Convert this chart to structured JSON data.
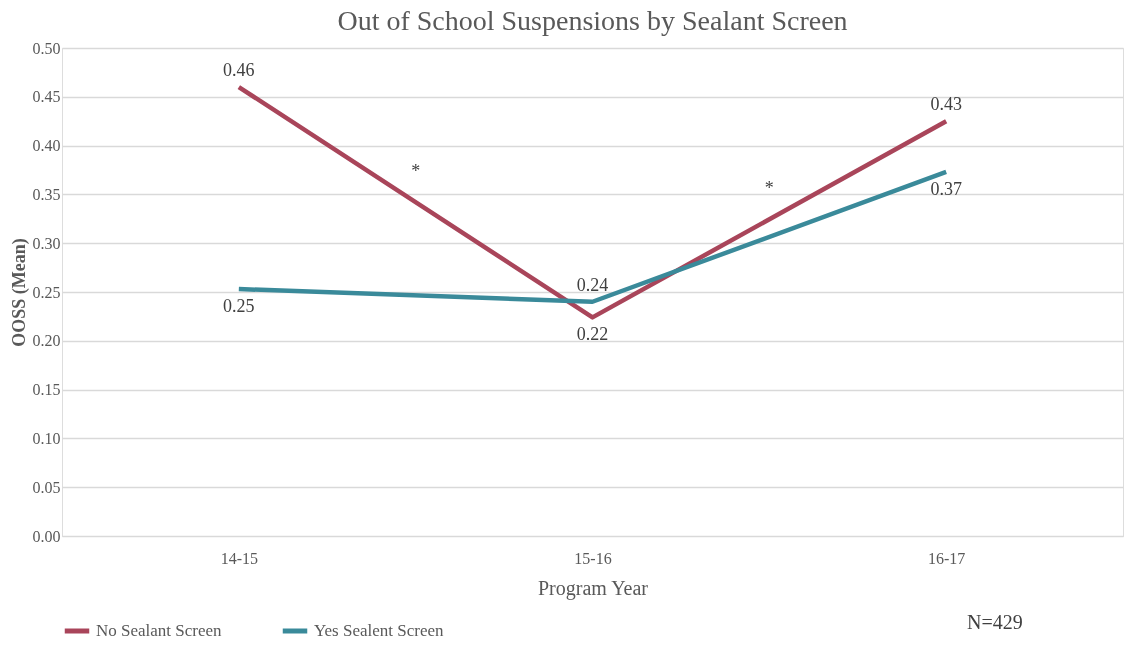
{
  "chart_data": {
    "type": "line",
    "title": "Out of School Suspensions by Sealant Screen",
    "xlabel": "Program Year",
    "ylabel": "OOSS (Mean)",
    "categories": [
      "14-15",
      "15-16",
      "16-17"
    ],
    "series": [
      {
        "name": "No Sealant Screen",
        "color": "#a9455a",
        "values": [
          0.46,
          0.224,
          0.425
        ],
        "value_labels": [
          "0.46",
          "0.22",
          "0.43"
        ]
      },
      {
        "name": "Yes Sealent Screen",
        "color": "#3a8a9a",
        "values": [
          0.253,
          0.24,
          0.373
        ],
        "value_labels": [
          "0.25",
          "0.24",
          "0.37"
        ]
      }
    ],
    "ylim": [
      0,
      0.5
    ],
    "yticks": [
      {
        "value": 0,
        "label": "0.00"
      },
      {
        "value": 0.05,
        "label": "0.05"
      },
      {
        "value": 0.1,
        "label": "0.10"
      },
      {
        "value": 0.15,
        "label": "0.15"
      },
      {
        "value": 0.2,
        "label": "0.20"
      },
      {
        "value": 0.25,
        "label": "0.25"
      },
      {
        "value": 0.3,
        "label": "0.30"
      },
      {
        "value": 0.35,
        "label": "0.35"
      },
      {
        "value": 0.4,
        "label": "0.40"
      },
      {
        "value": 0.45,
        "label": "0.45"
      },
      {
        "value": 0.5,
        "label": "0.50"
      }
    ],
    "grid": "y",
    "legend": "bottom",
    "marker": "none",
    "line_style": "solid",
    "annotations": [
      "*",
      "*",
      "N=429"
    ]
  }
}
